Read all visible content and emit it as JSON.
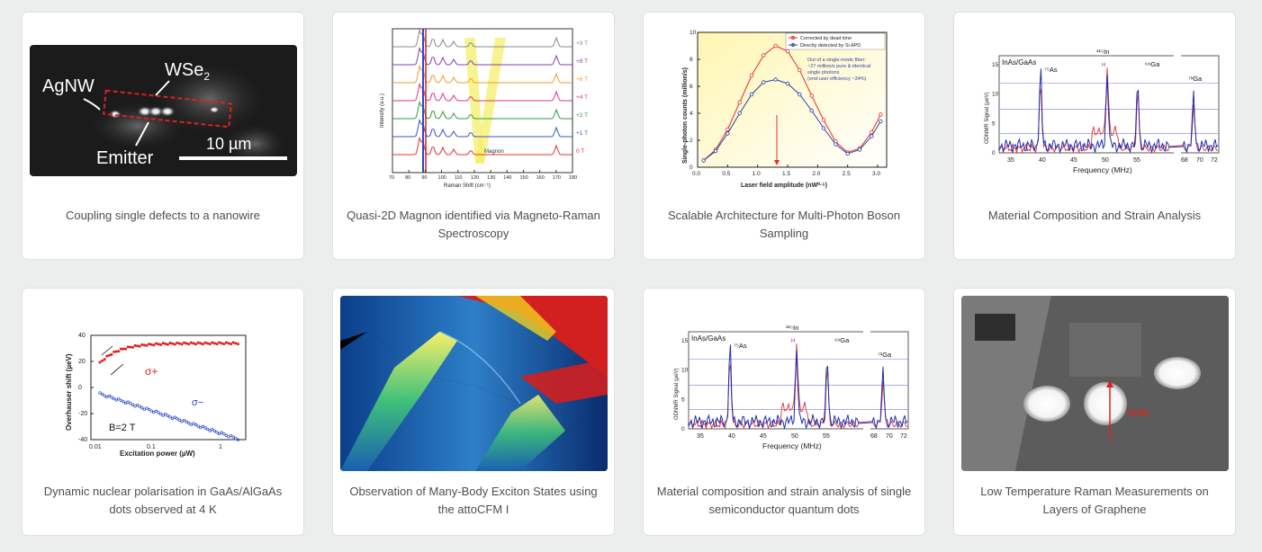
{
  "cards": [
    {
      "caption": "Coupling single defects to a nanowire",
      "figure": {
        "labels": {
          "agnw": "AgNW",
          "wse2": "WSe",
          "wse2_sub": "2",
          "emitter": "Emitter",
          "scale": "10 µm"
        }
      }
    },
    {
      "caption": "Quasi-2D Magnon identified via Magneto-Raman Spectroscopy",
      "figure": {
        "ylabel": "Intensity (a.u.)",
        "xlabel": "Raman Shift (cm⁻¹)",
        "annotation": "Magnon",
        "xticks": [
          "70",
          "80",
          "90",
          "100",
          "110",
          "120",
          "130",
          "140",
          "150",
          "160",
          "170",
          "180"
        ],
        "fields": [
          "+9 T",
          "+8 T",
          "+6 T",
          "+4 T",
          "+2 T",
          "+1 T",
          "0 T"
        ],
        "colors": [
          "#888888",
          "#8b3bb5",
          "#f39b2f",
          "#e2317a",
          "#2e9b3e",
          "#3455c9",
          "#e83030"
        ]
      }
    },
    {
      "caption": "Scalable Architecture for Multi-Photon Boson Sampling",
      "figure": {
        "ylabel": "Single-photon counts (million/s)",
        "xlabel": "Laser field amplitude (nW⁰·⁵)",
        "legend": [
          "Corrected by dead time",
          "Directly detected by Si APD"
        ],
        "note": [
          "Out of a single-mode fiber:",
          "~27 million/s pure & identical",
          "single photons",
          "(end-user efficiency ~34%)"
        ],
        "xticks": [
          "0.0",
          "0.5",
          "1.0",
          "1.5",
          "2.0",
          "2.5",
          "3.0"
        ],
        "yticks": [
          "0",
          "2",
          "4",
          "6",
          "8",
          "10"
        ],
        "chart_data": {
          "type": "line",
          "x": [
            0.1,
            0.3,
            0.5,
            0.7,
            0.9,
            1.1,
            1.3,
            1.5,
            1.7,
            1.9,
            2.1,
            2.3,
            2.5,
            2.7,
            2.9,
            3.05
          ],
          "series": [
            {
              "name": "Corrected by dead time",
              "values": [
                0.5,
                1.3,
                2.8,
                4.8,
                6.8,
                8.3,
                9.0,
                8.6,
                7.2,
                5.3,
                3.5,
                1.9,
                1.1,
                1.4,
                2.6,
                3.9
              ]
            },
            {
              "name": "Directly detected by Si APD",
              "values": [
                0.5,
                1.2,
                2.5,
                4.0,
                5.4,
                6.3,
                6.5,
                6.2,
                5.4,
                4.2,
                2.9,
                1.7,
                1.0,
                1.3,
                2.3,
                3.4
              ]
            }
          ]
        }
      }
    },
    {
      "caption": "Material Composition and Strain Analysis",
      "figure": {
        "ylabel": "ODNMR Signal (µeV)",
        "xlabel": "Frequency (MHz)",
        "sample": "InAs/GaAs",
        "peaks": [
          "⁷⁵As",
          "¹¹⁵In",
          "⁶⁹Ga",
          "⁷¹Ga"
        ],
        "marker": "H",
        "xticks": [
          "35",
          "40",
          "45",
          "50",
          "55",
          "68",
          "70",
          "72"
        ],
        "yticks": [
          "0",
          "5",
          "10",
          "15"
        ]
      }
    },
    {
      "caption": "Dynamic nuclear polarisation in GaAs/AlGaAs dots observed at 4 K",
      "figure": {
        "ylabel": "Overhauser shift (µeV)",
        "xlabel": "Excitation power (µW)",
        "sigma_plus": "σ+",
        "sigma_minus": "σ−",
        "field": "B=2 T",
        "xticks": [
          "0.01",
          "0.1",
          "1"
        ],
        "yticks": [
          "40",
          "20",
          "0",
          "-20",
          "-40"
        ]
      }
    },
    {
      "caption": "Observation of Many-Body Exciton States using the attoCFM I",
      "figure": {}
    },
    {
      "caption": "Material composition and strain analysis of single semiconductor quantum dots",
      "figure": {
        "ylabel": "ODNMR Signal (µeV)",
        "xlabel": "Frequency (MHz)",
        "sample": "InAs/GaAs",
        "peaks": [
          "⁷⁵As",
          "¹¹⁵In",
          "⁶⁹Ga",
          "⁷¹Ga"
        ],
        "marker": "H",
        "xticks": [
          "35",
          "40",
          "45",
          "50",
          "55",
          "68",
          "70",
          "72"
        ],
        "yticks": [
          "0",
          "5",
          "10",
          "15"
        ]
      }
    },
    {
      "caption": "Low Temperature Raman Measurements on Layers of Graphene",
      "figure": {
        "label": "hole"
      }
    }
  ]
}
